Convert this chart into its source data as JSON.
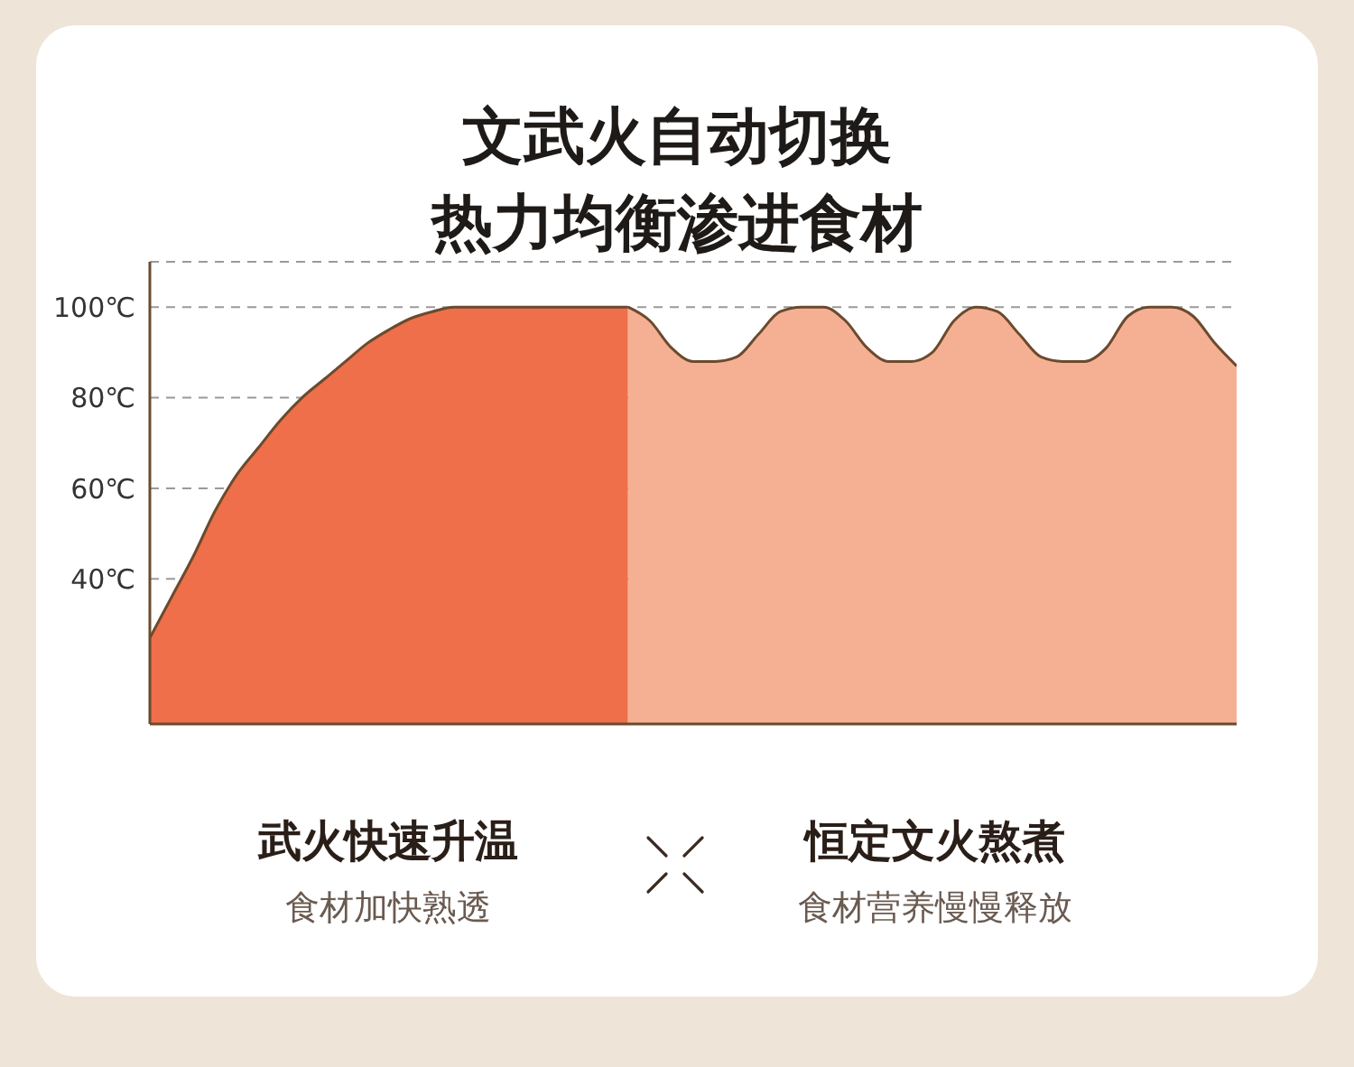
{
  "chart_data": {
    "type": "area",
    "title": "文武火自动切换",
    "subtitle": "热力均衡渗进食材",
    "categories": [
      null,
      null,
      null,
      null,
      null,
      null,
      null,
      null,
      null,
      null,
      null,
      null,
      null,
      null,
      null,
      null,
      null,
      null,
      null,
      null,
      null,
      null,
      null,
      null,
      null,
      null,
      null,
      null,
      null,
      null,
      null,
      null,
      null,
      null,
      null,
      null,
      null,
      null,
      null,
      null,
      null,
      null,
      null,
      null,
      null,
      null,
      null,
      null,
      null,
      null,
      null
    ],
    "series": [
      {
        "color": "#ee6f4a",
        "values": [
          27,
          36,
          45,
          55,
          63,
          69,
          75,
          80,
          84,
          88,
          92,
          95,
          97.5,
          99,
          100,
          100,
          100,
          100,
          100,
          100,
          100,
          100,
          100,
          null,
          null,
          null,
          null,
          null,
          null,
          null,
          null,
          null,
          null,
          null,
          null,
          null,
          null,
          null,
          null,
          null,
          null,
          null,
          null,
          null,
          null,
          null,
          null,
          null,
          null,
          null,
          null
        ]
      },
      {
        "color": "#f5b093",
        "values": [
          null,
          null,
          null,
          null,
          null,
          null,
          null,
          null,
          null,
          null,
          null,
          null,
          null,
          null,
          null,
          null,
          null,
          null,
          null,
          null,
          null,
          null,
          100,
          97,
          91,
          88,
          88,
          89,
          94,
          99,
          100,
          100,
          97,
          91,
          88,
          88,
          90,
          97,
          100,
          99,
          94,
          89,
          88,
          88,
          91,
          98,
          100,
          100,
          98,
          92,
          87
        ]
      }
    ],
    "ylim": [
      8,
      110
    ],
    "yticks": [
      {
        "value": 40,
        "label": "40℃"
      },
      {
        "value": 60,
        "label": "60℃"
      },
      {
        "value": 80,
        "label": "80℃"
      },
      {
        "value": 100,
        "label": "100℃"
      }
    ],
    "grid": "y",
    "tick_labels": "y",
    "annotations": [
      "武火快速升温",
      "食材加快熟透",
      "恒定文火熬煮",
      "食材营养慢慢释放"
    ]
  }
}
